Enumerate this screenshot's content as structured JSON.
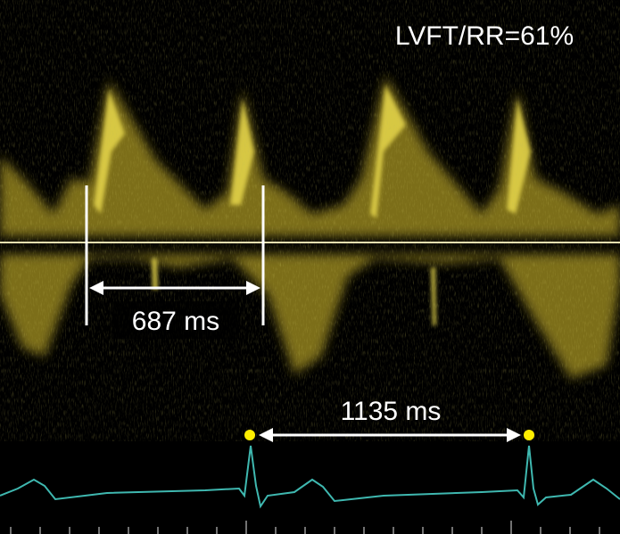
{
  "annotations": {
    "ratio": "LVFT/RR=61%",
    "lvft": "687 ms",
    "rr": "1135 ms"
  }
}
